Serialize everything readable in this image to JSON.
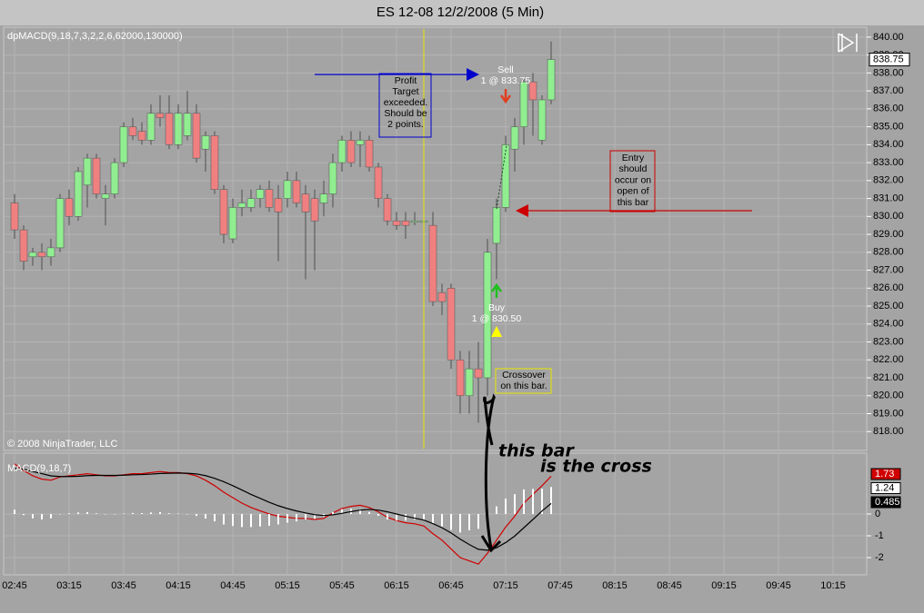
{
  "title": "ES 12-08  12/2/2008 (5 Min)",
  "chart_data": [
    {
      "type": "candlestick",
      "label": "dpMACD(9,18,7,3,2,2,6,62000,130000)",
      "up_color": "#90ee90",
      "down_color": "#f08080",
      "open": [
        830.75,
        829.25,
        827.75,
        828.0,
        827.75,
        828.25,
        831.0,
        830.0,
        831.75,
        833.25,
        831.0,
        831.25,
        833.0,
        835.0,
        834.75,
        834.25,
        835.75,
        835.75,
        834.0,
        834.5,
        835.75,
        833.75,
        834.5,
        831.5,
        828.75,
        830.5,
        830.5,
        831.0,
        831.5,
        831.0,
        831.0,
        832.0,
        831.25,
        831.0,
        830.75,
        831.25,
        833.0,
        834.25,
        834.0,
        834.25,
        832.75,
        831.0,
        829.75,
        829.75,
        829.75,
        829.75,
        829.5,
        825.75,
        826.0,
        822.0,
        820.0,
        821.5,
        821.0,
        828.5,
        830.5,
        833.75,
        835.0,
        837.5,
        834.25,
        836.5
      ],
      "high": [
        831.25,
        829.5,
        828.25,
        828.5,
        828.75,
        831.25,
        831.5,
        832.75,
        833.5,
        833.5,
        831.75,
        833.25,
        835.25,
        835.5,
        835.25,
        836.25,
        836.75,
        836.75,
        836.25,
        837.0,
        836.25,
        834.75,
        834.75,
        831.75,
        831.0,
        831.5,
        831.5,
        831.75,
        832.0,
        831.75,
        832.5,
        832.5,
        831.75,
        831.5,
        832.0,
        833.5,
        834.5,
        834.75,
        834.75,
        834.5,
        833.0,
        831.25,
        830.25,
        830.25,
        830.25,
        830.0,
        830.25,
        826.25,
        826.25,
        822.5,
        822.5,
        823.0,
        828.75,
        831.0,
        834.5,
        835.5,
        837.75,
        838.0,
        836.75,
        839.75
      ],
      "low": [
        828.75,
        827.0,
        827.25,
        827.0,
        827.25,
        828.0,
        829.5,
        829.75,
        830.5,
        831.0,
        829.5,
        831.0,
        832.75,
        834.25,
        834.0,
        834.0,
        835.0,
        833.75,
        833.75,
        834.25,
        833.0,
        832.5,
        831.25,
        828.5,
        828.5,
        830.0,
        830.25,
        830.5,
        830.25,
        827.5,
        830.5,
        830.5,
        826.5,
        827.0,
        830.0,
        830.5,
        832.5,
        832.75,
        832.75,
        832.5,
        830.5,
        829.5,
        829.25,
        828.75,
        829.5,
        829.5,
        825.0,
        824.5,
        821.5,
        819.0,
        819.0,
        818.5,
        820.0,
        826.5,
        830.25,
        832.5,
        834.0,
        834.5,
        834.0,
        836.25
      ],
      "close": [
        829.25,
        827.5,
        828.0,
        827.75,
        828.25,
        831.0,
        830.0,
        832.5,
        833.25,
        831.25,
        831.25,
        833.0,
        835.0,
        834.5,
        834.25,
        835.75,
        835.5,
        834.0,
        835.75,
        835.75,
        833.25,
        834.5,
        831.5,
        829.0,
        830.5,
        830.75,
        831.0,
        831.5,
        830.5,
        830.25,
        832.0,
        830.75,
        830.25,
        829.75,
        831.25,
        833.0,
        834.25,
        833.0,
        834.25,
        832.75,
        831.0,
        829.75,
        829.5,
        829.5,
        829.75,
        829.75,
        825.25,
        825.25,
        822.0,
        820.0,
        821.5,
        821.0,
        828.0,
        830.5,
        834.0,
        835.0,
        837.5,
        836.5,
        836.5,
        838.75
      ],
      "ylim": [
        817.0,
        840.55
      ],
      "yticks": [
        {
          "value": 840,
          "label": "840.00"
        },
        {
          "value": 839,
          "label": "839.00"
        },
        {
          "value": 838,
          "label": "838.00"
        },
        {
          "value": 837,
          "label": "837.00"
        },
        {
          "value": 836,
          "label": "836.00"
        },
        {
          "value": 835,
          "label": "835.00"
        },
        {
          "value": 834,
          "label": "834.00"
        },
        {
          "value": 833,
          "label": "833.00"
        },
        {
          "value": 832,
          "label": "832.00"
        },
        {
          "value": 831,
          "label": "831.00"
        },
        {
          "value": 830,
          "label": "830.00"
        },
        {
          "value": 829,
          "label": "829.00"
        },
        {
          "value": 828,
          "label": "828.00"
        },
        {
          "value": 827,
          "label": "827.00"
        },
        {
          "value": 826,
          "label": "826.00"
        },
        {
          "value": 825,
          "label": "825.00"
        },
        {
          "value": 824,
          "label": "824.00"
        },
        {
          "value": 823,
          "label": "823.00"
        },
        {
          "value": 822,
          "label": "822.00"
        },
        {
          "value": 821,
          "label": "821.00"
        },
        {
          "value": 820,
          "label": "820.00"
        },
        {
          "value": 819,
          "label": "819.00"
        },
        {
          "value": 818,
          "label": "818.00"
        }
      ],
      "grid": true
    },
    {
      "type": "line",
      "label": "MACD(9,18,7)",
      "series": [
        {
          "color": "#d00000",
          "values": [
            2.3,
            2.0,
            1.75,
            1.6,
            1.55,
            1.7,
            1.75,
            1.8,
            1.85,
            1.8,
            1.75,
            1.75,
            1.8,
            1.85,
            1.85,
            1.9,
            1.95,
            1.9,
            1.9,
            1.85,
            1.75,
            1.55,
            1.3,
            1.0,
            0.75,
            0.5,
            0.3,
            0.15,
            0.0,
            -0.1,
            -0.15,
            -0.2,
            -0.2,
            -0.25,
            -0.2,
            0.05,
            0.25,
            0.35,
            0.4,
            0.3,
            0.1,
            -0.15,
            -0.3,
            -0.4,
            -0.45,
            -0.55,
            -0.9,
            -1.2,
            -1.6,
            -2.0,
            -2.15,
            -2.3,
            -1.8,
            -1.2,
            -0.6,
            -0.1,
            0.5,
            0.9,
            1.3,
            1.73
          ],
          "tag_text": "#ffffff"
        },
        {
          "color": "#ffffff",
          "kind": "histogram",
          "values": [
            0.2,
            -0.05,
            -0.2,
            -0.25,
            -0.2,
            -0.02,
            0.03,
            0.07,
            0.09,
            0.03,
            -0.02,
            -0.02,
            0.02,
            0.05,
            0.04,
            0.07,
            0.09,
            0.03,
            0.02,
            -0.02,
            -0.09,
            -0.21,
            -0.34,
            -0.48,
            -0.55,
            -0.6,
            -0.6,
            -0.57,
            -0.54,
            -0.48,
            -0.4,
            -0.34,
            -0.25,
            -0.22,
            -0.13,
            0.09,
            0.22,
            0.24,
            0.22,
            0.09,
            -0.08,
            -0.25,
            -0.3,
            -0.3,
            -0.26,
            -0.27,
            -0.46,
            -0.57,
            -0.73,
            -0.85,
            -0.75,
            -0.68,
            -0.14,
            0.35,
            0.71,
            0.91,
            1.13,
            1.15,
            1.16,
            1.24
          ],
          "tag_text": "#000000"
        },
        {
          "color": "#000000",
          "values": [
            2.1,
            2.05,
            1.95,
            1.85,
            1.75,
            1.72,
            1.72,
            1.73,
            1.76,
            1.77,
            1.77,
            1.77,
            1.78,
            1.8,
            1.81,
            1.83,
            1.86,
            1.87,
            1.88,
            1.87,
            1.84,
            1.76,
            1.64,
            1.48,
            1.3,
            1.1,
            0.9,
            0.72,
            0.54,
            0.38,
            0.25,
            0.14,
            0.05,
            -0.03,
            -0.07,
            -0.04,
            0.03,
            0.11,
            0.18,
            0.21,
            0.18,
            0.1,
            0.0,
            -0.1,
            -0.19,
            -0.28,
            -0.44,
            -0.63,
            -0.87,
            -1.15,
            -1.4,
            -1.62,
            -1.66,
            -1.55,
            -1.31,
            -1.01,
            -0.63,
            -0.25,
            0.14,
            0.485
          ],
          "tag_text": "#ffffff"
        }
      ],
      "ylim": [
        -2.75,
        2.75
      ],
      "yticks": [
        0,
        -1,
        -2
      ],
      "grid": true
    }
  ],
  "time_labels": [
    "02:45",
    "03:15",
    "03:45",
    "04:15",
    "04:45",
    "05:15",
    "05:45",
    "06:15",
    "06:45",
    "07:15",
    "07:45",
    "08:15",
    "08:45",
    "09:15",
    "09:45",
    "10:15"
  ],
  "copyright": "© 2008 NinjaTrader, LLC",
  "annotations": {
    "profit_note": [
      "Profit",
      "Target",
      "exceeded.",
      "Should be",
      "2 points."
    ],
    "sell": [
      "Sell",
      "1 @ 833.75"
    ],
    "buy": [
      "Buy",
      "1 @ 830.50"
    ],
    "crossover": [
      "Crossover",
      "on this bar."
    ],
    "entry": [
      "Entry",
      "should",
      "occur on",
      "open of",
      "this bar"
    ],
    "handwriting": [
      "this bar",
      "is the cross"
    ]
  }
}
